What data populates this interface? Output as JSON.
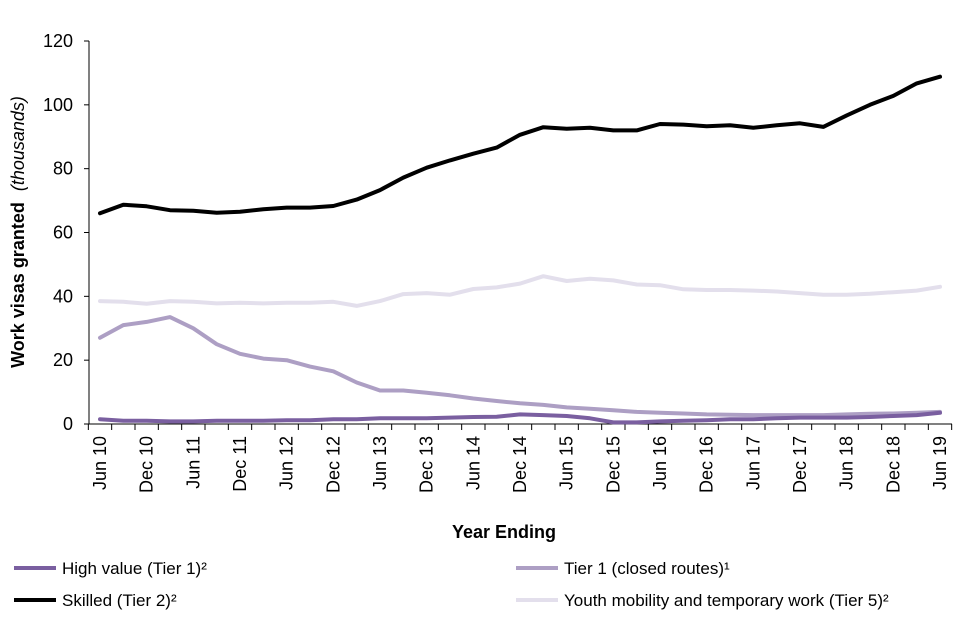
{
  "chart_data": {
    "type": "line",
    "title": "",
    "xlabel": "Year Ending",
    "ylabel": "Work visas granted",
    "ylabel_italic": "(thousands)",
    "ylim": [
      0,
      120
    ],
    "yticks": [
      0,
      20,
      40,
      60,
      80,
      100,
      120
    ],
    "x": [
      "Jun 10",
      "Sep 10",
      "Dec 10",
      "Mar 11",
      "Jun 11",
      "Sep 11",
      "Dec 11",
      "Mar 12",
      "Jun 12",
      "Sep 12",
      "Dec 12",
      "Mar 13",
      "Jun 13",
      "Sep 13",
      "Dec 13",
      "Mar 14",
      "Jun 14",
      "Sep 14",
      "Dec 14",
      "Mar 15",
      "Jun 15",
      "Sep 15",
      "Dec 15",
      "Mar 16",
      "Jun 16",
      "Sep 16",
      "Dec 16",
      "Mar 17",
      "Jun 17",
      "Sep 17",
      "Dec 17",
      "Mar 18",
      "Jun 18",
      "Sep 18",
      "Dec 18",
      "Mar 19",
      "Jun 19"
    ],
    "x_tick_labels": [
      "Jun 10",
      "Dec 10",
      "Jun 11",
      "Dec 11",
      "Jun 12",
      "Dec 12",
      "Jun 13",
      "Dec 13",
      "Jun 14",
      "Dec 14",
      "Jun 15",
      "Dec 15",
      "Jun 16",
      "Dec 16",
      "Jun 17",
      "Dec 17",
      "Jun 18",
      "Dec 18",
      "Jun 19"
    ],
    "series": [
      {
        "name": "High value (Tier 1)²",
        "color": "#7a5fa0",
        "values": [
          1.5,
          1.0,
          1.0,
          0.8,
          0.8,
          1.0,
          1.0,
          1.0,
          1.2,
          1.2,
          1.5,
          1.5,
          1.8,
          1.8,
          1.8,
          2.0,
          2.2,
          2.3,
          3.0,
          2.8,
          2.5,
          1.8,
          0.5,
          0.5,
          0.8,
          1.0,
          1.2,
          1.5,
          1.5,
          1.8,
          2.0,
          2.0,
          2.0,
          2.2,
          2.5,
          2.8,
          3.5
        ]
      },
      {
        "name": "Tier 1 (closed routes)¹",
        "color": "#ad9fc4",
        "values": [
          27,
          31,
          32,
          33.5,
          30,
          25,
          22,
          20.5,
          20,
          18,
          16.5,
          13,
          10.5,
          10.5,
          9.8,
          9,
          8,
          7.2,
          6.5,
          6,
          5.2,
          4.8,
          4.3,
          3.8,
          3.5,
          3.3,
          3,
          2.9,
          2.8,
          2.8,
          2.8,
          2.8,
          3,
          3.2,
          3.3,
          3.5,
          3.8
        ]
      },
      {
        "name": "Skilled (Tier 2)²",
        "color": "#000000",
        "values": [
          66,
          68.7,
          68.2,
          67,
          66.8,
          66.2,
          66.5,
          67.3,
          67.8,
          67.8,
          68.3,
          70.3,
          73.3,
          77.2,
          80.3,
          82.6,
          84.7,
          86.6,
          90.6,
          93,
          92.5,
          92.8,
          92,
          92,
          94,
          93.8,
          93.3,
          93.6,
          92.8,
          93.6,
          94.2,
          93.1,
          96.7,
          100,
          102.8,
          106.7,
          108.8
        ]
      },
      {
        "name": "Youth mobility and temporary work (Tier 5)²",
        "color": "#e3dfec",
        "values": [
          38.5,
          38.3,
          37.7,
          38.5,
          38.3,
          37.8,
          38,
          37.8,
          38,
          38,
          38.3,
          37,
          38.5,
          40.7,
          41,
          40.5,
          42.3,
          42.8,
          44,
          46.3,
          44.8,
          45.5,
          45,
          43.7,
          43.5,
          42.2,
          42,
          42,
          41.8,
          41.5,
          41,
          40.5,
          40.5,
          40.8,
          41.3,
          41.8,
          43
        ]
      }
    ],
    "legend_position": "bottom"
  }
}
